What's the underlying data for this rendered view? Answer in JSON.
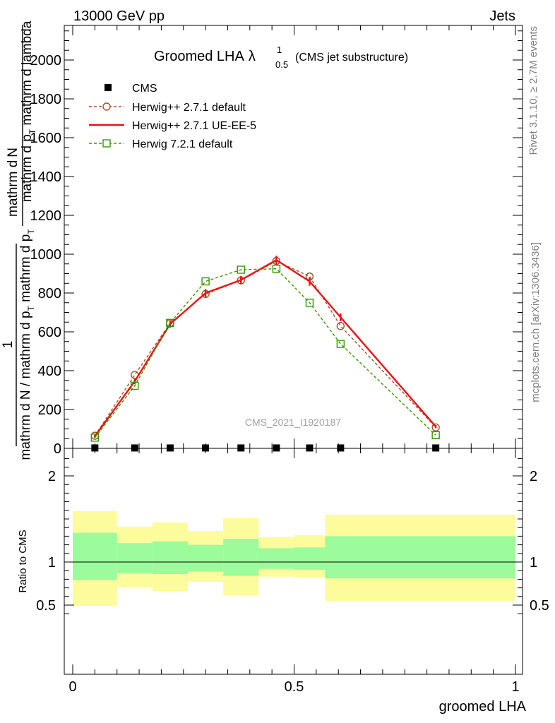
{
  "header": {
    "left": "13000 GeV pp",
    "right": "Jets",
    "side_top": "Rivet 3.1.10, ≥ 2.7M events",
    "side_bottom": "mcplots.cern.ch [arXiv:1306.3436]",
    "watermark": "CMS_2021_I1920187"
  },
  "chart_data": [
    {
      "type": "line",
      "title": "Groomed LHA",
      "title_symbol": "λ",
      "title_sup": "1",
      "title_sub": "0.5",
      "subtitle": "(CMS jet substructure)",
      "ylabel_numerator_line1": "mathrm d",
      "ylabel_numerator_line2": "N",
      "ylabel_numerator_line3": "mathrm d p",
      "ylabel_numerator_line4": "T",
      "ylabel_numerator_line5": " mathrm d lambda",
      "ylabel_numerator_tail": " mathrm d lambda",
      "ylabel_1": "1",
      "ylabel_denominator": "mathrm d N / mathrm d p",
      "ylabel_denominator_tail": " mathrm d p",
      "ylabel_frac_num": "mathrm d",
      "ylabel_frac_N": "N",
      "ylabel_parts_numerator": "mathrm d",
      "ylabel_top_a": "mathrm d",
      "ylabel_top_b": "N",
      "ylabel_top_c": "mathrm d p",
      "ylabel_top_d": "T",
      "ylabel_top_e": " mathrm d lambda",
      "ylabel_bottom_a": "mathrm d N / mathrm d p",
      "ylabel_bottom_b": "T",
      "ylabel_bottom_c": " mathrm d p",
      "ylabel_bottom_d": "T",
      "ylim": [
        0,
        2200
      ],
      "yticks": [
        "0",
        "200",
        "400",
        "600",
        "800",
        "1000",
        "1200",
        "1400",
        "1600",
        "1800",
        "2000"
      ],
      "ytick_values": [
        0,
        200,
        400,
        600,
        800,
        1000,
        1200,
        1400,
        1600,
        1800,
        2000
      ],
      "xlim": [
        -0.02,
        1.0
      ],
      "legend": [
        "CMS",
        "Herwig++ 2.7.1 default",
        "Herwig++ 2.7.1 UE-EE-5",
        "Herwig 7.2.1 default"
      ],
      "legend_position": "top-left",
      "series": [
        {
          "name": "CMS",
          "color": "#000000",
          "style": "square-marker",
          "x": [
            0.05,
            0.14,
            0.22,
            0.3,
            0.38,
            0.46,
            0.535,
            0.605,
            0.82
          ],
          "y": [
            2,
            2,
            2,
            2,
            2,
            2,
            2,
            2,
            2
          ]
        },
        {
          "name": "Herwig++ 2.7.1 default",
          "color": "#a0522d",
          "style": "dashed-circle",
          "x": [
            0.05,
            0.14,
            0.22,
            0.3,
            0.38,
            0.46,
            0.535,
            0.605,
            0.82
          ],
          "y": [
            65,
            378,
            645,
            795,
            865,
            965,
            885,
            630,
            108
          ]
        },
        {
          "name": "Herwig++ 2.7.1 UE-EE-5",
          "color": "#ee1111",
          "style": "solid",
          "x": [
            0.05,
            0.14,
            0.22,
            0.3,
            0.38,
            0.46,
            0.535,
            0.605,
            0.82
          ],
          "y": [
            62,
            345,
            640,
            800,
            867,
            970,
            860,
            675,
            112
          ],
          "errors": [
            8,
            14,
            18,
            20,
            20,
            22,
            22,
            20,
            8
          ]
        },
        {
          "name": "Herwig 7.2.1 default",
          "color": "#339900",
          "style": "dashed-square",
          "x": [
            0.05,
            0.14,
            0.22,
            0.3,
            0.38,
            0.46,
            0.535,
            0.605,
            0.82
          ],
          "y": [
            55,
            322,
            646,
            860,
            920,
            925,
            750,
            538,
            68
          ]
        }
      ]
    },
    {
      "type": "area",
      "ylabel": "Ratio to CMS",
      "xlabel": "groomed LHA",
      "ylim": [
        0.35,
        2.35
      ],
      "xlim": [
        -0.02,
        1.0
      ],
      "yticks": [
        "0.5",
        "1",
        "2"
      ],
      "ytick_values": [
        0.5,
        1,
        2
      ],
      "xticks": [
        "0",
        "0.5",
        "1"
      ],
      "xtick_values": [
        0,
        0.5,
        1
      ],
      "reference_line": 1,
      "bins": [
        {
          "x_low": 0.0,
          "x_high": 0.1,
          "inner": [
            0.79,
            1.34
          ],
          "outer": [
            0.49,
            1.59
          ]
        },
        {
          "x_low": 0.1,
          "x_high": 0.18,
          "inner": [
            0.87,
            1.22
          ],
          "outer": [
            0.71,
            1.41
          ]
        },
        {
          "x_low": 0.18,
          "x_high": 0.26,
          "inner": [
            0.86,
            1.24
          ],
          "outer": [
            0.66,
            1.46
          ]
        },
        {
          "x_low": 0.26,
          "x_high": 0.34,
          "inner": [
            0.89,
            1.2
          ],
          "outer": [
            0.77,
            1.36
          ]
        },
        {
          "x_low": 0.34,
          "x_high": 0.42,
          "inner": [
            0.84,
            1.27
          ],
          "outer": [
            0.61,
            1.51
          ]
        },
        {
          "x_low": 0.42,
          "x_high": 0.5,
          "inner": [
            0.92,
            1.16
          ],
          "outer": [
            0.83,
            1.29
          ]
        },
        {
          "x_low": 0.5,
          "x_high": 0.57,
          "inner": [
            0.91,
            1.17
          ],
          "outer": [
            0.82,
            1.31
          ]
        },
        {
          "x_low": 0.57,
          "x_high": 1.0,
          "inner": [
            0.81,
            1.3
          ],
          "outer": [
            0.55,
            1.55
          ]
        }
      ],
      "band_colors": {
        "inner": "#9cfc9c",
        "outer": "#fcfc9c"
      }
    }
  ]
}
